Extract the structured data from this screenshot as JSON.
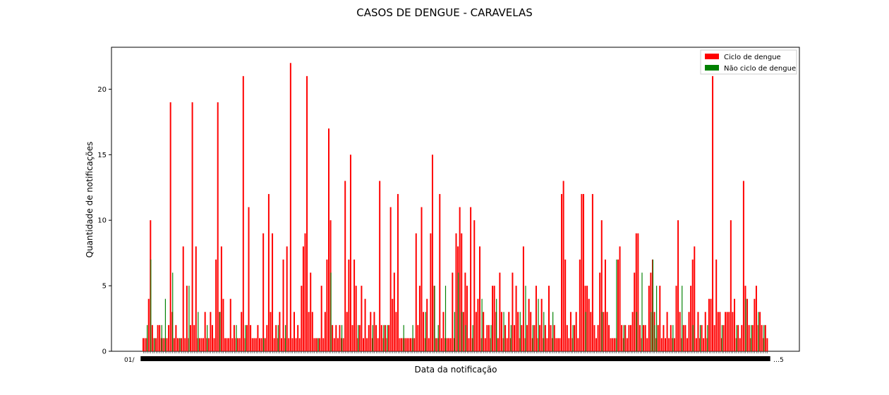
{
  "chart_data": {
    "type": "bar",
    "title": "CASOS DE DENGUE - CARAVELAS",
    "xlabel": "Data da notificação",
    "ylabel": "Quantidade de notificações",
    "ylim": [
      0,
      23.2
    ],
    "yticks": [
      0,
      5,
      10,
      15,
      20
    ],
    "x_tick_labels": [
      "01/",
      "…5"
    ],
    "legend": {
      "placement": "top-right",
      "entries": [
        "Ciclo de dengue",
        "Não ciclo de dengue"
      ]
    },
    "colors": {
      "cycle": "#ff0000",
      "non_cycle": "#008000"
    },
    "series": [
      {
        "name": "Ciclo de dengue",
        "color": "#ff0000",
        "spikes": [
          [
            3,
            4
          ],
          [
            4,
            10
          ],
          [
            5,
            2
          ],
          [
            8,
            2
          ],
          [
            9,
            2
          ],
          [
            14,
            2
          ],
          [
            15,
            19
          ],
          [
            16,
            3
          ],
          [
            18,
            2
          ],
          [
            22,
            8
          ],
          [
            24,
            5
          ],
          [
            26,
            2
          ],
          [
            27,
            19
          ],
          [
            28,
            2
          ],
          [
            29,
            8
          ],
          [
            34,
            3
          ],
          [
            37,
            3
          ],
          [
            38,
            2
          ],
          [
            40,
            7
          ],
          [
            41,
            19
          ],
          [
            42,
            3
          ],
          [
            43,
            8
          ],
          [
            44,
            4
          ],
          [
            46,
            1
          ],
          [
            48,
            4
          ],
          [
            50,
            2
          ],
          [
            52,
            1
          ],
          [
            54,
            3
          ],
          [
            55,
            21
          ],
          [
            57,
            2
          ],
          [
            58,
            11
          ],
          [
            59,
            2
          ],
          [
            61,
            1
          ],
          [
            63,
            2
          ],
          [
            66,
            9
          ],
          [
            68,
            2
          ],
          [
            69,
            12
          ],
          [
            70,
            3
          ],
          [
            71,
            9
          ],
          [
            73,
            2
          ],
          [
            75,
            3
          ],
          [
            77,
            7
          ],
          [
            79,
            8
          ],
          [
            81,
            22
          ],
          [
            83,
            3
          ],
          [
            85,
            2
          ],
          [
            87,
            5
          ],
          [
            88,
            8
          ],
          [
            89,
            9
          ],
          [
            90,
            21
          ],
          [
            91,
            3
          ],
          [
            92,
            6
          ],
          [
            93,
            3
          ],
          [
            95,
            1
          ],
          [
            98,
            5
          ],
          [
            100,
            3
          ],
          [
            101,
            7
          ],
          [
            102,
            17
          ],
          [
            103,
            10
          ],
          [
            104,
            2
          ],
          [
            106,
            2
          ],
          [
            108,
            2
          ],
          [
            111,
            13
          ],
          [
            112,
            3
          ],
          [
            113,
            7
          ],
          [
            114,
            15
          ],
          [
            115,
            2
          ],
          [
            116,
            7
          ],
          [
            117,
            5
          ],
          [
            119,
            2
          ],
          [
            120,
            5
          ],
          [
            122,
            4
          ],
          [
            124,
            2
          ],
          [
            125,
            3
          ],
          [
            127,
            3
          ],
          [
            128,
            2
          ],
          [
            130,
            13
          ],
          [
            131,
            2
          ],
          [
            133,
            2
          ],
          [
            135,
            2
          ],
          [
            136,
            11
          ],
          [
            137,
            4
          ],
          [
            138,
            6
          ],
          [
            139,
            3
          ],
          [
            140,
            12
          ],
          [
            145,
            1
          ],
          [
            147,
            1
          ],
          [
            150,
            9
          ],
          [
            151,
            2
          ],
          [
            152,
            5
          ],
          [
            153,
            11
          ],
          [
            154,
            3
          ],
          [
            156,
            4
          ],
          [
            158,
            9
          ],
          [
            159,
            15
          ],
          [
            160,
            5
          ],
          [
            163,
            12
          ],
          [
            165,
            3
          ],
          [
            168,
            1
          ],
          [
            170,
            6
          ],
          [
            172,
            9
          ],
          [
            173,
            8
          ],
          [
            174,
            11
          ],
          [
            175,
            9
          ],
          [
            176,
            3
          ],
          [
            177,
            6
          ],
          [
            178,
            5
          ],
          [
            180,
            11
          ],
          [
            182,
            10
          ],
          [
            183,
            3
          ],
          [
            184,
            4
          ],
          [
            185,
            8
          ],
          [
            187,
            3
          ],
          [
            189,
            2
          ],
          [
            190,
            2
          ],
          [
            192,
            5
          ],
          [
            193,
            5
          ],
          [
            194,
            3
          ],
          [
            196,
            6
          ],
          [
            197,
            3
          ],
          [
            199,
            2
          ],
          [
            201,
            3
          ],
          [
            203,
            6
          ],
          [
            204,
            2
          ],
          [
            205,
            5
          ],
          [
            206,
            3
          ],
          [
            208,
            2
          ],
          [
            209,
            8
          ],
          [
            211,
            2
          ],
          [
            212,
            4
          ],
          [
            213,
            3
          ],
          [
            215,
            2
          ],
          [
            216,
            5
          ],
          [
            218,
            2
          ],
          [
            219,
            4
          ],
          [
            221,
            2
          ],
          [
            223,
            5
          ],
          [
            224,
            2
          ],
          [
            226,
            2
          ],
          [
            228,
            1
          ],
          [
            230,
            12
          ],
          [
            231,
            13
          ],
          [
            232,
            7
          ],
          [
            233,
            2
          ],
          [
            235,
            3
          ],
          [
            237,
            2
          ],
          [
            238,
            3
          ],
          [
            240,
            7
          ],
          [
            241,
            12
          ],
          [
            242,
            12
          ],
          [
            243,
            5
          ],
          [
            244,
            5
          ],
          [
            245,
            4
          ],
          [
            246,
            3
          ],
          [
            247,
            12
          ],
          [
            248,
            2
          ],
          [
            250,
            2
          ],
          [
            251,
            6
          ],
          [
            252,
            10
          ],
          [
            253,
            3
          ],
          [
            254,
            7
          ],
          [
            255,
            3
          ],
          [
            256,
            2
          ],
          [
            259,
            1
          ],
          [
            261,
            7
          ],
          [
            262,
            8
          ],
          [
            263,
            2
          ],
          [
            265,
            2
          ],
          [
            267,
            2
          ],
          [
            268,
            2
          ],
          [
            269,
            3
          ],
          [
            270,
            6
          ],
          [
            271,
            9
          ],
          [
            272,
            9
          ],
          [
            273,
            2
          ],
          [
            275,
            2
          ],
          [
            276,
            2
          ],
          [
            278,
            5
          ],
          [
            279,
            6
          ],
          [
            280,
            7
          ],
          [
            281,
            3
          ],
          [
            283,
            2
          ],
          [
            284,
            5
          ],
          [
            286,
            2
          ],
          [
            288,
            3
          ],
          [
            290,
            2
          ],
          [
            293,
            5
          ],
          [
            294,
            10
          ],
          [
            295,
            3
          ],
          [
            297,
            2
          ],
          [
            298,
            2
          ],
          [
            300,
            3
          ],
          [
            301,
            5
          ],
          [
            302,
            7
          ],
          [
            303,
            8
          ],
          [
            305,
            3
          ],
          [
            307,
            2
          ],
          [
            309,
            3
          ],
          [
            311,
            4
          ],
          [
            312,
            4
          ],
          [
            313,
            21
          ],
          [
            314,
            2
          ],
          [
            315,
            7
          ],
          [
            316,
            3
          ],
          [
            317,
            3
          ],
          [
            319,
            2
          ],
          [
            320,
            3
          ],
          [
            321,
            3
          ],
          [
            322,
            3
          ],
          [
            323,
            10
          ],
          [
            324,
            3
          ],
          [
            325,
            4
          ],
          [
            327,
            2
          ],
          [
            329,
            2
          ],
          [
            330,
            13
          ],
          [
            331,
            5
          ],
          [
            332,
            4
          ],
          [
            333,
            2
          ],
          [
            335,
            2
          ],
          [
            336,
            4
          ],
          [
            337,
            5
          ],
          [
            338,
            2
          ],
          [
            339,
            3
          ],
          [
            340,
            2
          ],
          [
            342,
            2
          ]
        ]
      },
      {
        "name": "Não ciclo de dengue",
        "color": "#008000",
        "spikes": [
          [
            2,
            2
          ],
          [
            4,
            7
          ],
          [
            6,
            1
          ],
          [
            10,
            2
          ],
          [
            12,
            4
          ],
          [
            16,
            6
          ],
          [
            20,
            1
          ],
          [
            25,
            5
          ],
          [
            30,
            3
          ],
          [
            35,
            2
          ],
          [
            42,
            3
          ],
          [
            51,
            2
          ],
          [
            56,
            2
          ],
          [
            66,
            1
          ],
          [
            74,
            2
          ],
          [
            78,
            2
          ],
          [
            96,
            1
          ],
          [
            103,
            6
          ],
          [
            109,
            2
          ],
          [
            118,
            2
          ],
          [
            126,
            2
          ],
          [
            132,
            2
          ],
          [
            134,
            2
          ],
          [
            143,
            2
          ],
          [
            148,
            2
          ],
          [
            155,
            3
          ],
          [
            160,
            5
          ],
          [
            162,
            2
          ],
          [
            166,
            5
          ],
          [
            171,
            3
          ],
          [
            173,
            6
          ],
          [
            175,
            3
          ],
          [
            177,
            2
          ],
          [
            181,
            2
          ],
          [
            186,
            4
          ],
          [
            191,
            2
          ],
          [
            194,
            4
          ],
          [
            198,
            3
          ],
          [
            202,
            2
          ],
          [
            207,
            3
          ],
          [
            210,
            5
          ],
          [
            214,
            2
          ],
          [
            217,
            4
          ],
          [
            220,
            3
          ],
          [
            225,
            3
          ],
          [
            236,
            2
          ],
          [
            243,
            3
          ],
          [
            252,
            3
          ],
          [
            260,
            7
          ],
          [
            264,
            2
          ],
          [
            271,
            3
          ],
          [
            274,
            6
          ],
          [
            279,
            3
          ],
          [
            280,
            7
          ],
          [
            281,
            2
          ],
          [
            282,
            5
          ],
          [
            291,
            2
          ],
          [
            296,
            5
          ],
          [
            302,
            2
          ],
          [
            306,
            2
          ],
          [
            310,
            2
          ],
          [
            318,
            2
          ],
          [
            326,
            2
          ],
          [
            331,
            4
          ],
          [
            334,
            2
          ],
          [
            338,
            3
          ],
          [
            341,
            2
          ]
        ]
      }
    ]
  }
}
